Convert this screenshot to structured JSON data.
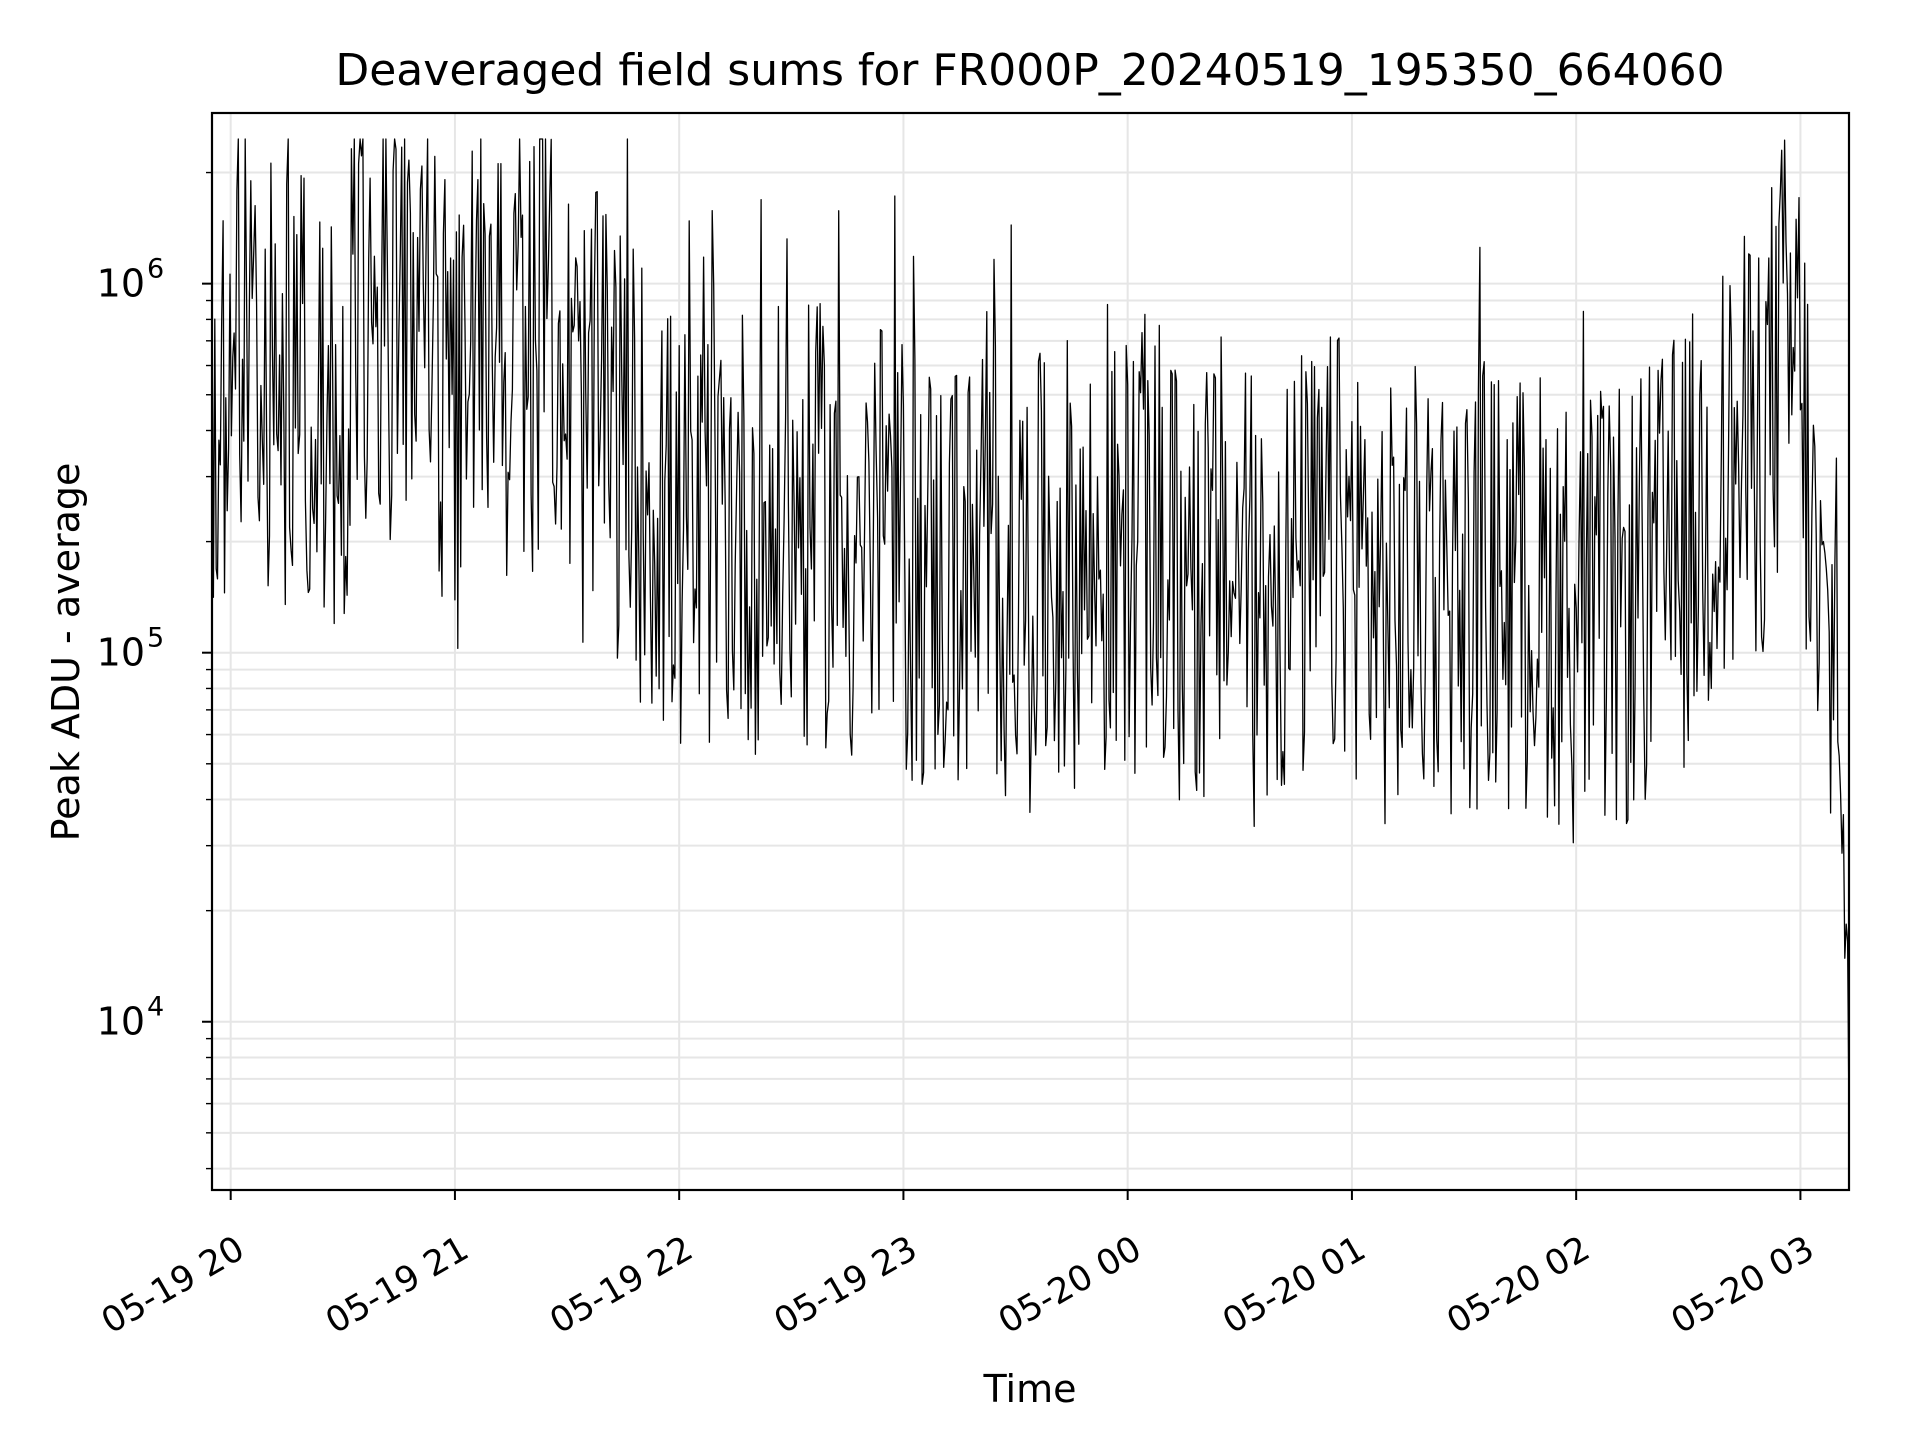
{
  "chart_data": {
    "type": "line",
    "title": "Deaveraged field sums for FR000P_20240519_195350_664060",
    "xlabel": "Time",
    "ylabel": "Peak ADU - average",
    "yscale": "log",
    "ylim": [
      3500,
      2900000
    ],
    "xlim": [
      "05-19 19:55",
      "05-20 03:13"
    ],
    "grid": true,
    "line_color": "#000000",
    "grid_color": "#e6e6e6",
    "xticks": [
      {
        "label": "05-19 20",
        "x": "05-19 20:00"
      },
      {
        "label": "05-19 21",
        "x": "05-19 21:00"
      },
      {
        "label": "05-19 22",
        "x": "05-19 22:00"
      },
      {
        "label": "05-19 23",
        "x": "05-19 23:00"
      },
      {
        "label": "05-20 00",
        "x": "05-20 00:00"
      },
      {
        "label": "05-20 01",
        "x": "05-20 01:00"
      },
      {
        "label": "05-20 02",
        "x": "05-20 02:00"
      },
      {
        "label": "05-20 03",
        "x": "05-20 03:00"
      }
    ],
    "yticks": [
      {
        "base": "10",
        "exp": "4",
        "value": 10000
      },
      {
        "base": "10",
        "exp": "5",
        "value": 100000
      },
      {
        "base": "10",
        "exp": "6",
        "value": 1000000
      }
    ],
    "series": [
      {
        "x": [
          "05-19 19:55",
          "05-19 20:05",
          "05-19 20:10",
          "05-19 20:15",
          "05-19 20:20",
          "05-19 20:25",
          "05-19 20:30",
          "05-19 20:35",
          "05-19 20:40",
          "05-19 20:45",
          "05-19 20:50",
          "05-19 20:55",
          "05-19 21:00",
          "05-19 21:05",
          "05-19 21:10",
          "05-19 21:15",
          "05-19 21:20",
          "05-19 21:25",
          "05-19 21:30",
          "05-19 21:35",
          "05-19 21:40",
          "05-19 21:45",
          "05-19 21:50",
          "05-19 21:55",
          "05-19 22:00",
          "05-19 22:05",
          "05-19 22:10",
          "05-19 22:15",
          "05-19 22:20",
          "05-19 22:25",
          "05-19 22:30",
          "05-19 22:35",
          "05-19 22:40",
          "05-19 22:45",
          "05-19 22:50",
          "05-19 22:55",
          "05-19 23:00",
          "05-19 23:05",
          "05-19 23:10",
          "05-19 23:15",
          "05-19 23:20",
          "05-19 23:25",
          "05-19 23:30",
          "05-19 23:35",
          "05-19 23:40",
          "05-19 23:45",
          "05-19 23:50",
          "05-19 23:55",
          "05-20 00:00",
          "05-20 00:05",
          "05-20 00:10",
          "05-20 00:15",
          "05-20 00:20",
          "05-20 00:25",
          "05-20 00:30",
          "05-20 00:35",
          "05-20 00:40",
          "05-20 00:45",
          "05-20 00:50",
          "05-20 00:55",
          "05-20 01:00",
          "05-20 01:05",
          "05-20 01:10",
          "05-20 01:15",
          "05-20 01:20",
          "05-20 01:25",
          "05-20 01:30",
          "05-20 01:35",
          "05-20 01:40",
          "05-20 01:45",
          "05-20 01:50",
          "05-20 01:55",
          "05-20 02:00",
          "05-20 02:05",
          "05-20 02:10",
          "05-20 02:15",
          "05-20 02:20",
          "05-20 02:25",
          "05-20 02:30",
          "05-20 02:35",
          "05-20 02:40",
          "05-20 02:45",
          "05-20 02:50",
          "05-20 02:55",
          "05-20 03:00",
          "05-20 03:05",
          "05-20 03:10",
          "05-20 03:13"
        ],
        "y": [
          480000,
          750000,
          550000,
          450000,
          600000,
          400000,
          500000,
          950000,
          700000,
          900000,
          1200000,
          600000,
          350000,
          700000,
          1000000,
          500000,
          600000,
          1100000,
          500000,
          400000,
          450000,
          350000,
          300000,
          250000,
          200000,
          180000,
          250000,
          230000,
          220000,
          200000,
          230000,
          210000,
          230000,
          190000,
          180000,
          200000,
          180000,
          170000,
          160000,
          170000,
          150000,
          160000,
          160000,
          150000,
          170000,
          180000,
          170000,
          160000,
          190000,
          200000,
          160000,
          140000,
          150000,
          180000,
          150000,
          130000,
          150000,
          160000,
          170000,
          180000,
          200000,
          150000,
          130000,
          140000,
          160000,
          150000,
          140000,
          160000,
          150000,
          140000,
          150000,
          140000,
          120000,
          130000,
          120000,
          140000,
          150000,
          170000,
          200000,
          250000,
          300000,
          330000,
          400000,
          650000,
          600000,
          100000,
          90000,
          12000
        ]
      }
    ]
  }
}
